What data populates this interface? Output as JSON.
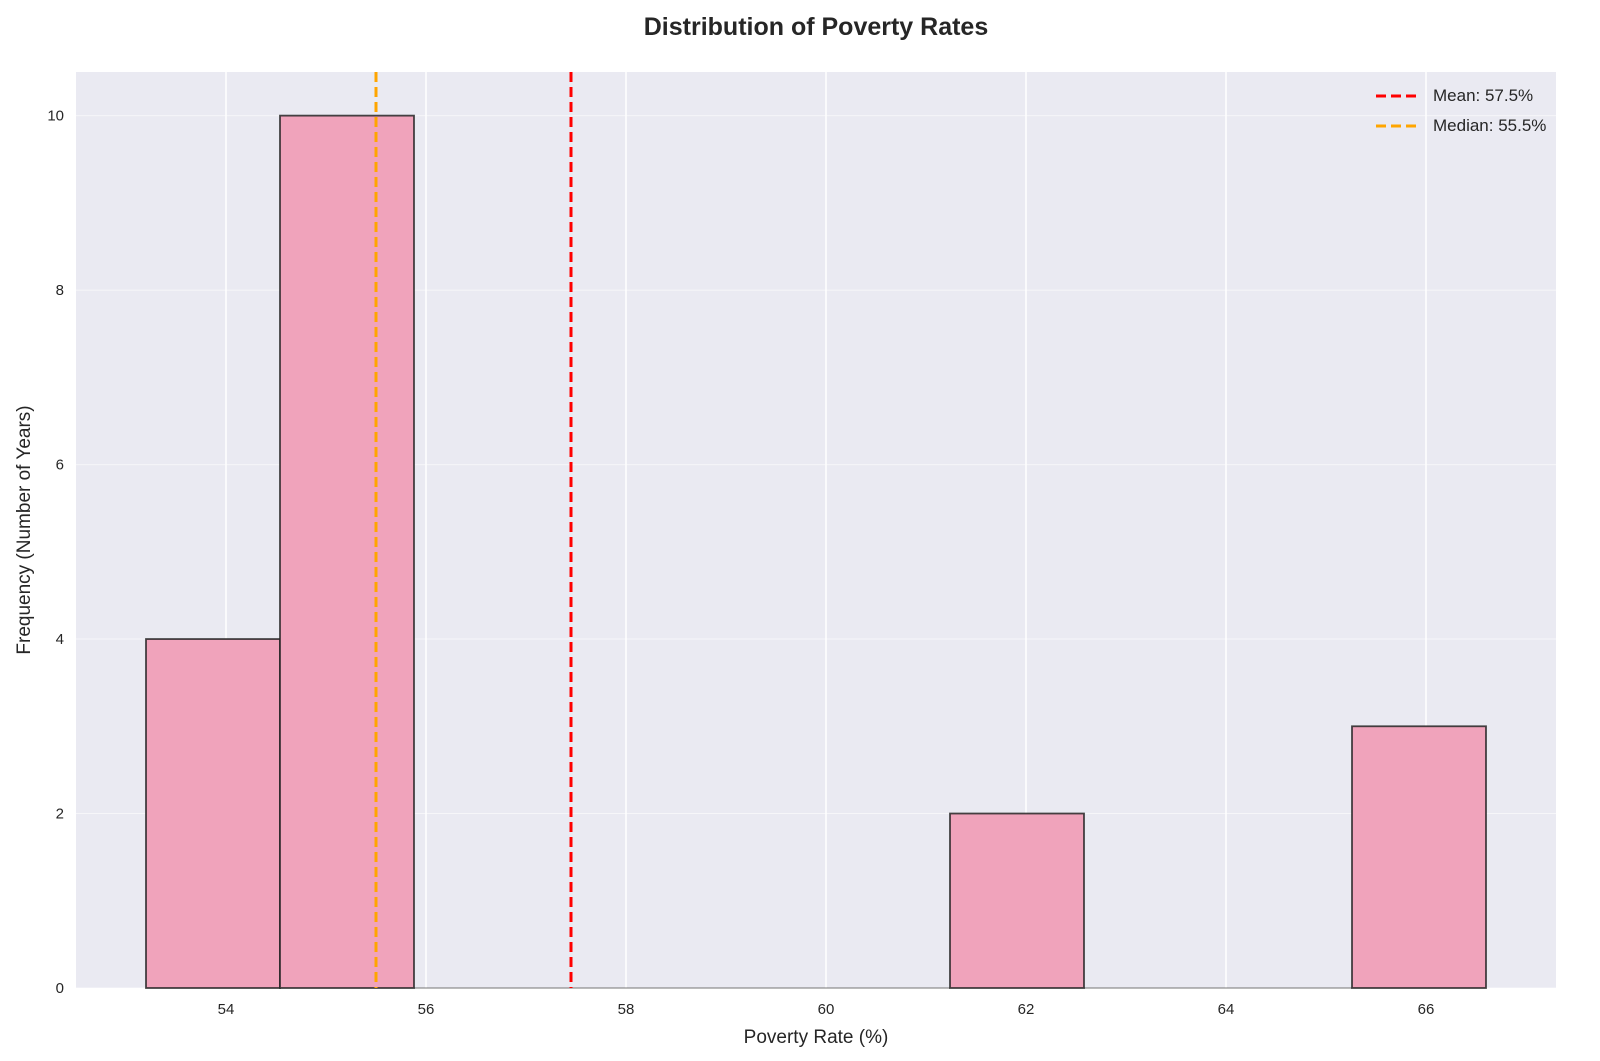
{
  "colors": {
    "plot_background": "#eaeaf2",
    "grid": "#ffffff",
    "bar_fill": "#f0a3bb",
    "bar_edge": "#262626",
    "mean_line": "#ff0000",
    "median_line": "#ffa500"
  },
  "chart_data": {
    "type": "bar",
    "subtype": "histogram",
    "title": "Distribution of Poverty Rates",
    "xlabel": "Poverty Rate (%)",
    "ylabel": "Frequency (Number of Years)",
    "xlim": [
      52.5,
      67.3
    ],
    "ylim": [
      0,
      10.5
    ],
    "xticks": [
      54,
      56,
      58,
      60,
      62,
      64,
      66
    ],
    "yticks": [
      0,
      2,
      4,
      6,
      8,
      10
    ],
    "bin_edges": [
      53.2,
      54.54,
      55.88,
      57.22,
      58.56,
      59.9,
      61.24,
      62.58,
      63.92,
      65.26,
      66.6
    ],
    "counts": [
      4,
      10,
      0,
      0,
      0,
      0,
      2,
      0,
      0,
      3
    ],
    "grid": true,
    "legend_position": "top-right",
    "reference_lines": [
      {
        "name": "Mean: 57.5%",
        "x": 57.45,
        "color": "#ff0000"
      },
      {
        "name": "Median: 55.5%",
        "x": 55.5,
        "color": "#ffa500"
      }
    ]
  }
}
